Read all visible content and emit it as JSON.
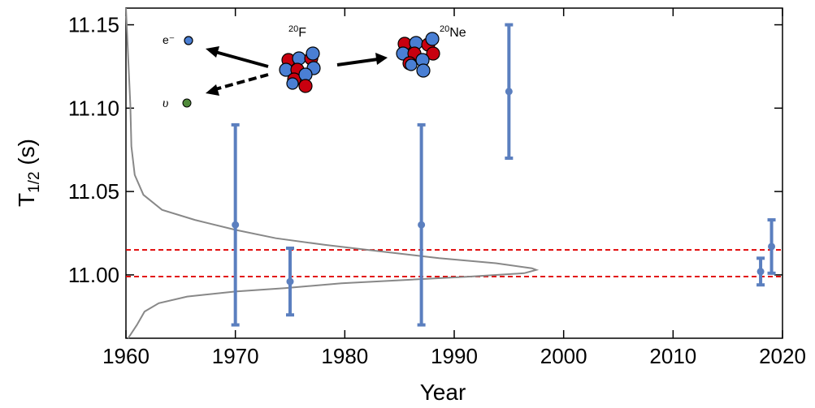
{
  "chart_data": {
    "type": "scatter",
    "x_label": "Year",
    "y_label": [
      "T",
      "1/2",
      " (s)"
    ],
    "x": [
      1970,
      1975,
      1987,
      1995,
      2018,
      2019
    ],
    "values": [
      11.03,
      10.996,
      11.03,
      11.11,
      11.002,
      11.017
    ],
    "errors": [
      0.06,
      0.02,
      0.06,
      0.04,
      0.008,
      0.016
    ],
    "color": "#5b7fbf",
    "xlim": [
      1960,
      2020
    ],
    "ylim": [
      10.962,
      11.16
    ],
    "xticks": [
      1960,
      1970,
      1980,
      1990,
      2000,
      2010,
      2020
    ],
    "yticks": [
      {
        "value": 11,
        "label": "11.00"
      },
      11.05,
      {
        "value": 11.1,
        "label": "11.10"
      },
      11.15
    ],
    "reference_lines": [
      11.015,
      10.999
    ],
    "reference_color": "#e00000",
    "curve": {
      "color": "#888888",
      "x": [
        1960.0,
        1960.2,
        1960.4,
        1960.5,
        1960.8,
        1961.6,
        1963.3,
        1966.3,
        1970.0,
        1973.7,
        1978.2,
        1983.4,
        1988.6,
        1993.8,
        1997.1,
        1997.5,
        1996.4,
        1991.6,
        1985.6,
        1979.7,
        1974.5,
        1970.0,
        1965.6,
        1963.0,
        1961.7,
        1961.0,
        1960.2
      ],
      "y": [
        11.16,
        11.131,
        11.102,
        11.077,
        11.06,
        11.048,
        11.039,
        11.033,
        11.027,
        11.022,
        11.018,
        11.014,
        11.01,
        11.007,
        11.004,
        11.003,
        11.001,
        10.999,
        10.997,
        10.995,
        10.992,
        10.99,
        10.987,
        10.983,
        10.978,
        10.97,
        10.962
      ]
    },
    "inset": {
      "electron": "e⁻",
      "neutrino": "υ",
      "parent_mass": "20",
      "parent": "F",
      "daughter_mass": "20",
      "daughter": "Ne"
    }
  }
}
